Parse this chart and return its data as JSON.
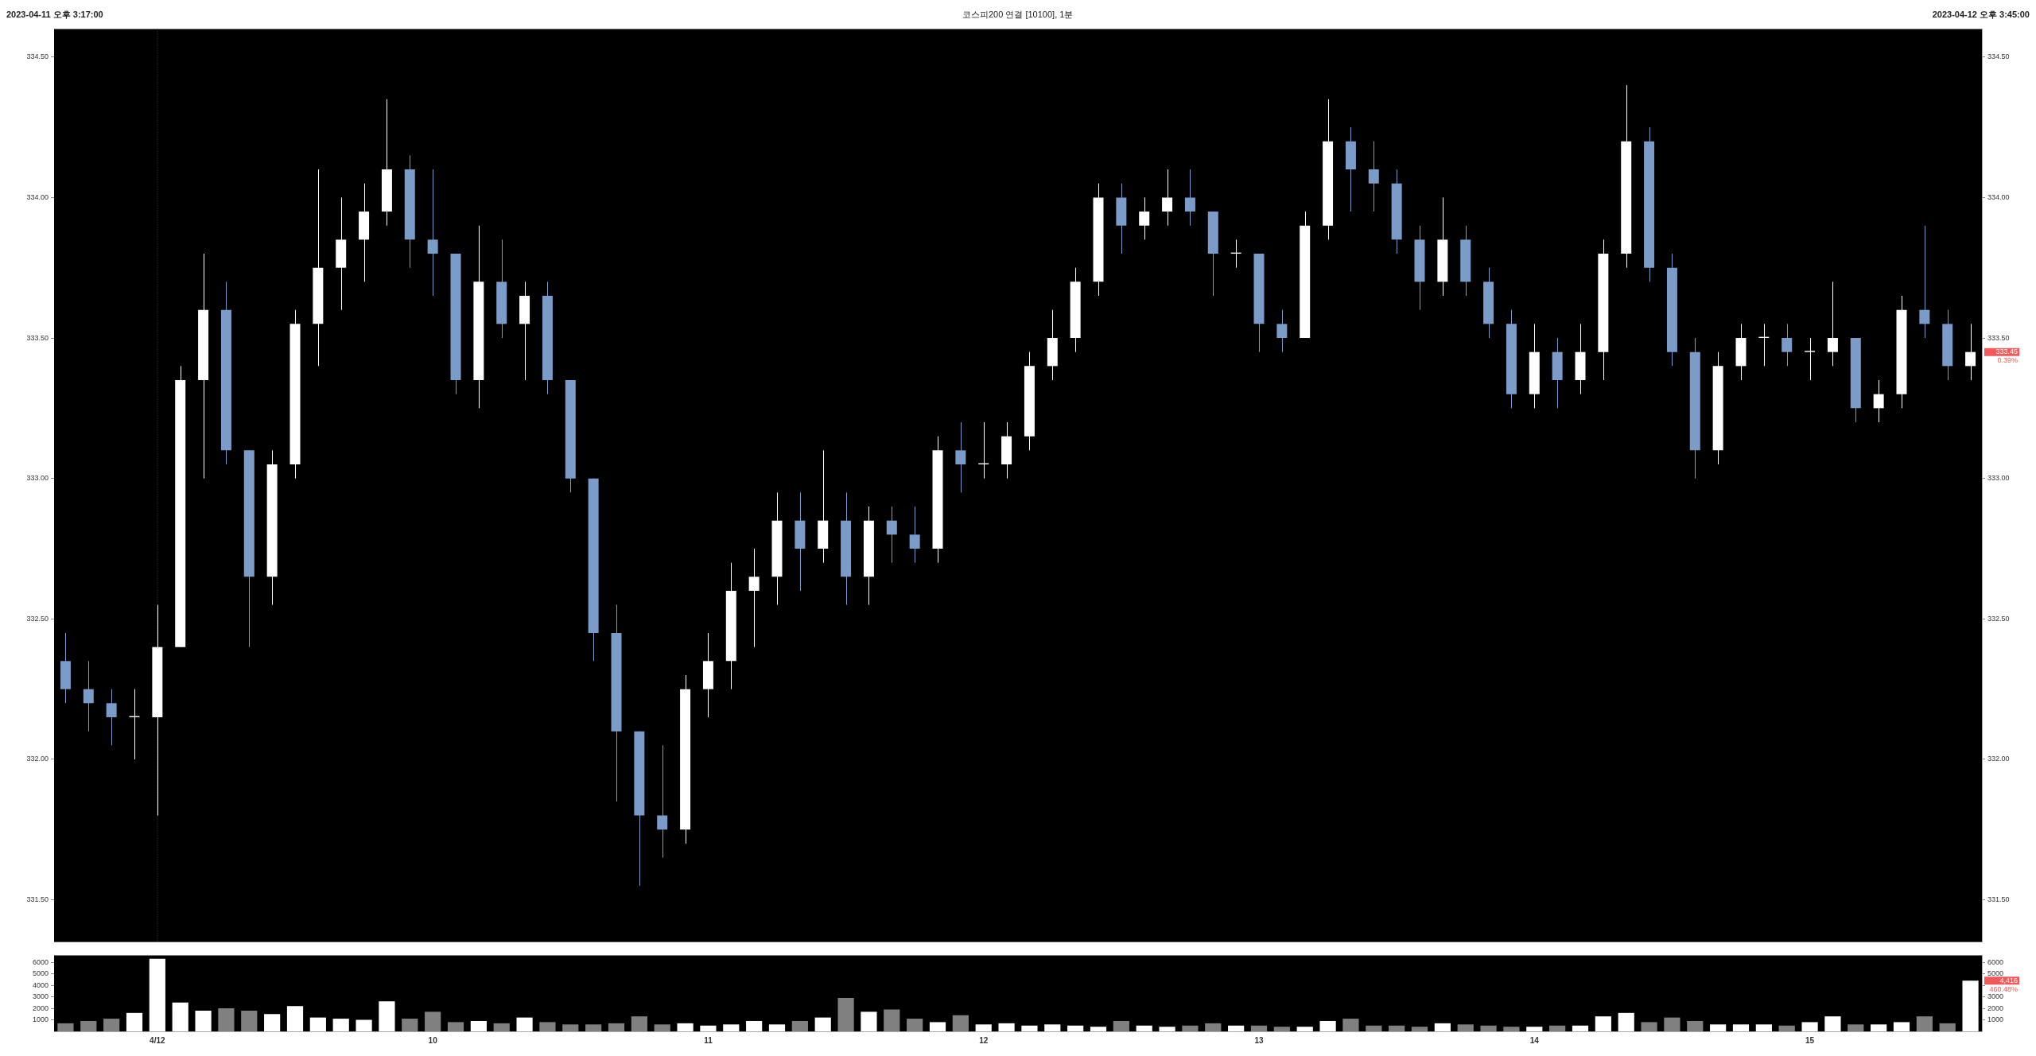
{
  "chart_data": [
    {
      "type": "candlestick",
      "title": "코스피200 연결 [10100], 1분",
      "categories": [
        null,
        null,
        null,
        null,
        "4/12",
        null,
        null,
        null,
        null,
        null,
        null,
        null,
        null,
        null,
        null,
        null,
        "10",
        null,
        null,
        null,
        null,
        null,
        null,
        null,
        null,
        null,
        null,
        null,
        "11",
        null,
        null,
        null,
        null,
        null,
        null,
        null,
        null,
        null,
        null,
        null,
        "12",
        null,
        null,
        null,
        null,
        null,
        null,
        null,
        null,
        null,
        null,
        null,
        "13",
        null,
        null,
        null,
        null,
        null,
        null,
        null,
        null,
        null,
        null,
        null,
        "14",
        null,
        null,
        null,
        null,
        null,
        null,
        null,
        null,
        null,
        null,
        null,
        "15",
        null,
        null,
        null,
        null,
        null,
        null,
        null
      ],
      "ohlc": [
        [
          332.35,
          332.45,
          332.2,
          332.25
        ],
        [
          332.25,
          332.35,
          332.1,
          332.2
        ],
        [
          332.2,
          332.25,
          332.05,
          332.15
        ],
        [
          332.15,
          332.25,
          332.0,
          332.15
        ],
        [
          332.15,
          332.55,
          331.8,
          332.4
        ],
        [
          332.4,
          333.4,
          332.4,
          333.35
        ],
        [
          333.35,
          333.8,
          333.0,
          333.6
        ],
        [
          333.6,
          333.7,
          333.05,
          333.1
        ],
        [
          333.1,
          333.1,
          332.4,
          332.65
        ],
        [
          332.65,
          333.1,
          332.55,
          333.05
        ],
        [
          333.05,
          333.6,
          333.0,
          333.55
        ],
        [
          333.55,
          334.1,
          333.4,
          333.75
        ],
        [
          333.75,
          334.0,
          333.6,
          333.85
        ],
        [
          333.85,
          334.05,
          333.7,
          333.95
        ],
        [
          333.95,
          334.35,
          333.9,
          334.1
        ],
        [
          334.1,
          334.15,
          333.75,
          333.85
        ],
        [
          333.85,
          334.1,
          333.65,
          333.8
        ],
        [
          333.8,
          333.8,
          333.3,
          333.35
        ],
        [
          333.35,
          333.9,
          333.25,
          333.7
        ],
        [
          333.7,
          333.85,
          333.5,
          333.55
        ],
        [
          333.55,
          333.7,
          333.35,
          333.65
        ],
        [
          333.65,
          333.7,
          333.3,
          333.35
        ],
        [
          333.35,
          333.35,
          332.95,
          333.0
        ],
        [
          333.0,
          333.0,
          332.35,
          332.45
        ],
        [
          332.45,
          332.55,
          331.85,
          332.1
        ],
        [
          332.1,
          332.1,
          331.55,
          331.8
        ],
        [
          331.8,
          332.05,
          331.65,
          331.75
        ],
        [
          331.75,
          332.3,
          331.7,
          332.25
        ],
        [
          332.25,
          332.45,
          332.15,
          332.35
        ],
        [
          332.35,
          332.7,
          332.25,
          332.6
        ],
        [
          332.6,
          332.75,
          332.4,
          332.65
        ],
        [
          332.65,
          332.95,
          332.55,
          332.85
        ],
        [
          332.85,
          332.95,
          332.6,
          332.75
        ],
        [
          332.75,
          333.1,
          332.7,
          332.85
        ],
        [
          332.85,
          332.95,
          332.55,
          332.65
        ],
        [
          332.65,
          332.9,
          332.55,
          332.85
        ],
        [
          332.85,
          332.9,
          332.7,
          332.8
        ],
        [
          332.8,
          332.9,
          332.7,
          332.75
        ],
        [
          332.75,
          333.15,
          332.7,
          333.1
        ],
        [
          333.1,
          333.2,
          332.95,
          333.05
        ],
        [
          333.05,
          333.2,
          333.0,
          333.05
        ],
        [
          333.05,
          333.2,
          333.0,
          333.15
        ],
        [
          333.15,
          333.45,
          333.1,
          333.4
        ],
        [
          333.4,
          333.6,
          333.35,
          333.5
        ],
        [
          333.5,
          333.75,
          333.45,
          333.7
        ],
        [
          333.7,
          334.05,
          333.65,
          334.0
        ],
        [
          334.0,
          334.05,
          333.8,
          333.9
        ],
        [
          333.9,
          334.0,
          333.85,
          333.95
        ],
        [
          333.95,
          334.1,
          333.9,
          334.0
        ],
        [
          334.0,
          334.1,
          333.9,
          333.95
        ],
        [
          333.95,
          333.95,
          333.65,
          333.8
        ],
        [
          333.8,
          333.85,
          333.75,
          333.8
        ],
        [
          333.8,
          333.8,
          333.45,
          333.55
        ],
        [
          333.55,
          333.6,
          333.45,
          333.5
        ],
        [
          333.5,
          333.95,
          333.5,
          333.9
        ],
        [
          333.9,
          334.35,
          333.85,
          334.2
        ],
        [
          334.2,
          334.25,
          333.95,
          334.1
        ],
        [
          334.1,
          334.2,
          333.95,
          334.05
        ],
        [
          334.05,
          334.1,
          333.8,
          333.85
        ],
        [
          333.85,
          333.9,
          333.6,
          333.7
        ],
        [
          333.7,
          334.0,
          333.65,
          333.85
        ],
        [
          333.85,
          333.9,
          333.65,
          333.7
        ],
        [
          333.7,
          333.75,
          333.5,
          333.55
        ],
        [
          333.55,
          333.6,
          333.25,
          333.3
        ],
        [
          333.3,
          333.55,
          333.25,
          333.45
        ],
        [
          333.45,
          333.5,
          333.25,
          333.35
        ],
        [
          333.35,
          333.55,
          333.3,
          333.45
        ],
        [
          333.45,
          333.85,
          333.35,
          333.8
        ],
        [
          333.8,
          334.4,
          333.75,
          334.2
        ],
        [
          334.2,
          334.25,
          333.7,
          333.75
        ],
        [
          333.75,
          333.8,
          333.4,
          333.45
        ],
        [
          333.45,
          333.5,
          333.0,
          333.1
        ],
        [
          333.1,
          333.45,
          333.05,
          333.4
        ],
        [
          333.4,
          333.55,
          333.35,
          333.5
        ],
        [
          333.5,
          333.55,
          333.4,
          333.5
        ],
        [
          333.5,
          333.55,
          333.4,
          333.45
        ],
        [
          333.45,
          333.5,
          333.35,
          333.45
        ],
        [
          333.45,
          333.7,
          333.4,
          333.5
        ],
        [
          333.5,
          333.5,
          333.2,
          333.25
        ],
        [
          333.25,
          333.35,
          333.2,
          333.3
        ],
        [
          333.3,
          333.65,
          333.25,
          333.6
        ],
        [
          333.6,
          333.9,
          333.5,
          333.55
        ],
        [
          333.55,
          333.6,
          333.35,
          333.4
        ],
        [
          333.4,
          333.55,
          333.35,
          333.45
        ]
      ],
      "colors": [
        "#7b9bc8",
        "#7b9bc8",
        "#7b9bc8",
        "#ffffff",
        "#ffffff",
        "#ffffff",
        "#ffffff",
        "#7b9bc8",
        "#7b9bc8",
        "#ffffff",
        "#ffffff",
        "#ffffff",
        "#ffffff",
        "#ffffff",
        "#ffffff",
        "#7b9bc8",
        "#7b9bc8",
        "#7b9bc8",
        "#ffffff",
        "#7b9bc8",
        "#ffffff",
        "#7b9bc8",
        "#7b9bc8",
        "#7b9bc8",
        "#7b9bc8",
        "#7b9bc8",
        "#7b9bc8",
        "#ffffff",
        "#ffffff",
        "#ffffff",
        "#ffffff",
        "#ffffff",
        "#7b9bc8",
        "#ffffff",
        "#7b9bc8",
        "#ffffff",
        "#7b9bc8",
        "#7b9bc8",
        "#ffffff",
        "#7b9bc8",
        "#ffffff",
        "#ffffff",
        "#ffffff",
        "#ffffff",
        "#ffffff",
        "#ffffff",
        "#7b9bc8",
        "#ffffff",
        "#ffffff",
        "#7b9bc8",
        "#7b9bc8",
        "#ffffff",
        "#7b9bc8",
        "#7b9bc8",
        "#ffffff",
        "#ffffff",
        "#7b9bc8",
        "#7b9bc8",
        "#7b9bc8",
        "#7b9bc8",
        "#ffffff",
        "#7b9bc8",
        "#7b9bc8",
        "#7b9bc8",
        "#ffffff",
        "#7b9bc8",
        "#ffffff",
        "#ffffff",
        "#ffffff",
        "#7b9bc8",
        "#7b9bc8",
        "#7b9bc8",
        "#ffffff",
        "#ffffff",
        "#ffffff",
        "#7b9bc8",
        "#ffffff",
        "#ffffff",
        "#7b9bc8",
        "#ffffff",
        "#ffffff",
        "#7b9bc8",
        "#7b9bc8",
        "#ffffff"
      ],
      "ylim": [
        331.35,
        334.6
      ],
      "yticks": [
        {
          "value": 331.5,
          "label": "331.50"
        },
        {
          "value": 332,
          "label": "332.00"
        },
        {
          "value": 332.5,
          "label": "332.50"
        },
        {
          "value": 333,
          "label": "333.00"
        },
        {
          "value": 333.5,
          "label": "333.50"
        },
        {
          "value": 334,
          "label": "334.00"
        },
        {
          "value": 334.5,
          "label": "334.50"
        }
      ],
      "y2lim": [
        331.35,
        334.6
      ],
      "y2ticks": [
        {
          "value": 331.5,
          "label": "331.50"
        },
        {
          "value": 332,
          "label": "332.00"
        },
        {
          "value": 332.5,
          "label": "332.50"
        },
        {
          "value": 333,
          "label": "333.00"
        },
        {
          "value": 333.5,
          "label": "333.50"
        },
        {
          "value": 334,
          "label": "334.00"
        },
        {
          "value": 334.5,
          "label": "334.50"
        }
      ],
      "ref_lines": [
        {
          "axis": "x",
          "value": "4/12",
          "color": "#444444",
          "line_style": "dotted"
        }
      ],
      "annotations": [
        "2023-04-11 오후 3:17:00",
        "2023-04-12 오후 3:45:00",
        "333.45",
        "0.39%"
      ],
      "tick_labels": "y",
      "grid": false,
      "legend": false
    },
    {
      "type": "bar",
      "categories": [
        null,
        null,
        null,
        null,
        "4/12",
        null,
        null,
        null,
        null,
        null,
        null,
        null,
        null,
        null,
        null,
        null,
        "10",
        null,
        null,
        null,
        null,
        null,
        null,
        null,
        null,
        null,
        null,
        null,
        "11",
        null,
        null,
        null,
        null,
        null,
        null,
        null,
        null,
        null,
        null,
        null,
        "12",
        null,
        null,
        null,
        null,
        null,
        null,
        null,
        null,
        null,
        null,
        null,
        "13",
        null,
        null,
        null,
        null,
        null,
        null,
        null,
        null,
        null,
        null,
        null,
        "14",
        null,
        null,
        null,
        null,
        null,
        null,
        null,
        null,
        null,
        null,
        null,
        "15",
        null,
        null,
        null,
        null,
        null,
        null,
        null
      ],
      "values": [
        700,
        900,
        1100,
        1600,
        6300,
        2500,
        1800,
        2000,
        1800,
        1500,
        2200,
        1200,
        1100,
        1000,
        2600,
        1100,
        1700,
        800,
        900,
        700,
        1200,
        800,
        600,
        600,
        700,
        1300,
        600,
        700,
        500,
        600,
        900,
        600,
        900,
        1200,
        2900,
        1700,
        1900,
        1100,
        800,
        1400,
        600,
        700,
        500,
        600,
        500,
        400,
        900,
        500,
        400,
        500,
        700,
        500,
        500,
        400,
        400,
        900,
        1100,
        500,
        500,
        400,
        700,
        600,
        500,
        400,
        400,
        500,
        500,
        1300,
        1600,
        800,
        1200,
        900,
        600,
        600,
        600,
        500,
        800,
        1300,
        600,
        600,
        800,
        1300,
        700,
        4400
      ],
      "colors": [
        "#808080",
        "#808080",
        "#808080",
        "#ffffff",
        "#ffffff",
        "#ffffff",
        "#ffffff",
        "#808080",
        "#808080",
        "#ffffff",
        "#ffffff",
        "#ffffff",
        "#ffffff",
        "#ffffff",
        "#ffffff",
        "#808080",
        "#808080",
        "#808080",
        "#ffffff",
        "#808080",
        "#ffffff",
        "#808080",
        "#808080",
        "#808080",
        "#808080",
        "#808080",
        "#808080",
        "#ffffff",
        "#ffffff",
        "#ffffff",
        "#ffffff",
        "#ffffff",
        "#808080",
        "#ffffff",
        "#808080",
        "#ffffff",
        "#808080",
        "#808080",
        "#ffffff",
        "#808080",
        "#ffffff",
        "#ffffff",
        "#ffffff",
        "#ffffff",
        "#ffffff",
        "#ffffff",
        "#808080",
        "#ffffff",
        "#ffffff",
        "#808080",
        "#808080",
        "#ffffff",
        "#808080",
        "#808080",
        "#ffffff",
        "#ffffff",
        "#808080",
        "#808080",
        "#808080",
        "#808080",
        "#ffffff",
        "#808080",
        "#808080",
        "#808080",
        "#ffffff",
        "#808080",
        "#ffffff",
        "#ffffff",
        "#ffffff",
        "#808080",
        "#808080",
        "#808080",
        "#ffffff",
        "#ffffff",
        "#ffffff",
        "#808080",
        "#ffffff",
        "#ffffff",
        "#808080",
        "#ffffff",
        "#ffffff",
        "#808080",
        "#808080",
        "#ffffff"
      ],
      "ylim": [
        0,
        6600
      ],
      "yticks": [
        1000,
        2000,
        3000,
        4000,
        5000,
        6000
      ],
      "y2lim": [
        0,
        6600
      ],
      "y2ticks": [
        1000,
        2000,
        3000,
        {
          "value": 4000,
          "label": null
        },
        5000,
        6000
      ],
      "annotations": [
        "4,416",
        "460.48%"
      ],
      "grid": false,
      "legend": false
    }
  ]
}
